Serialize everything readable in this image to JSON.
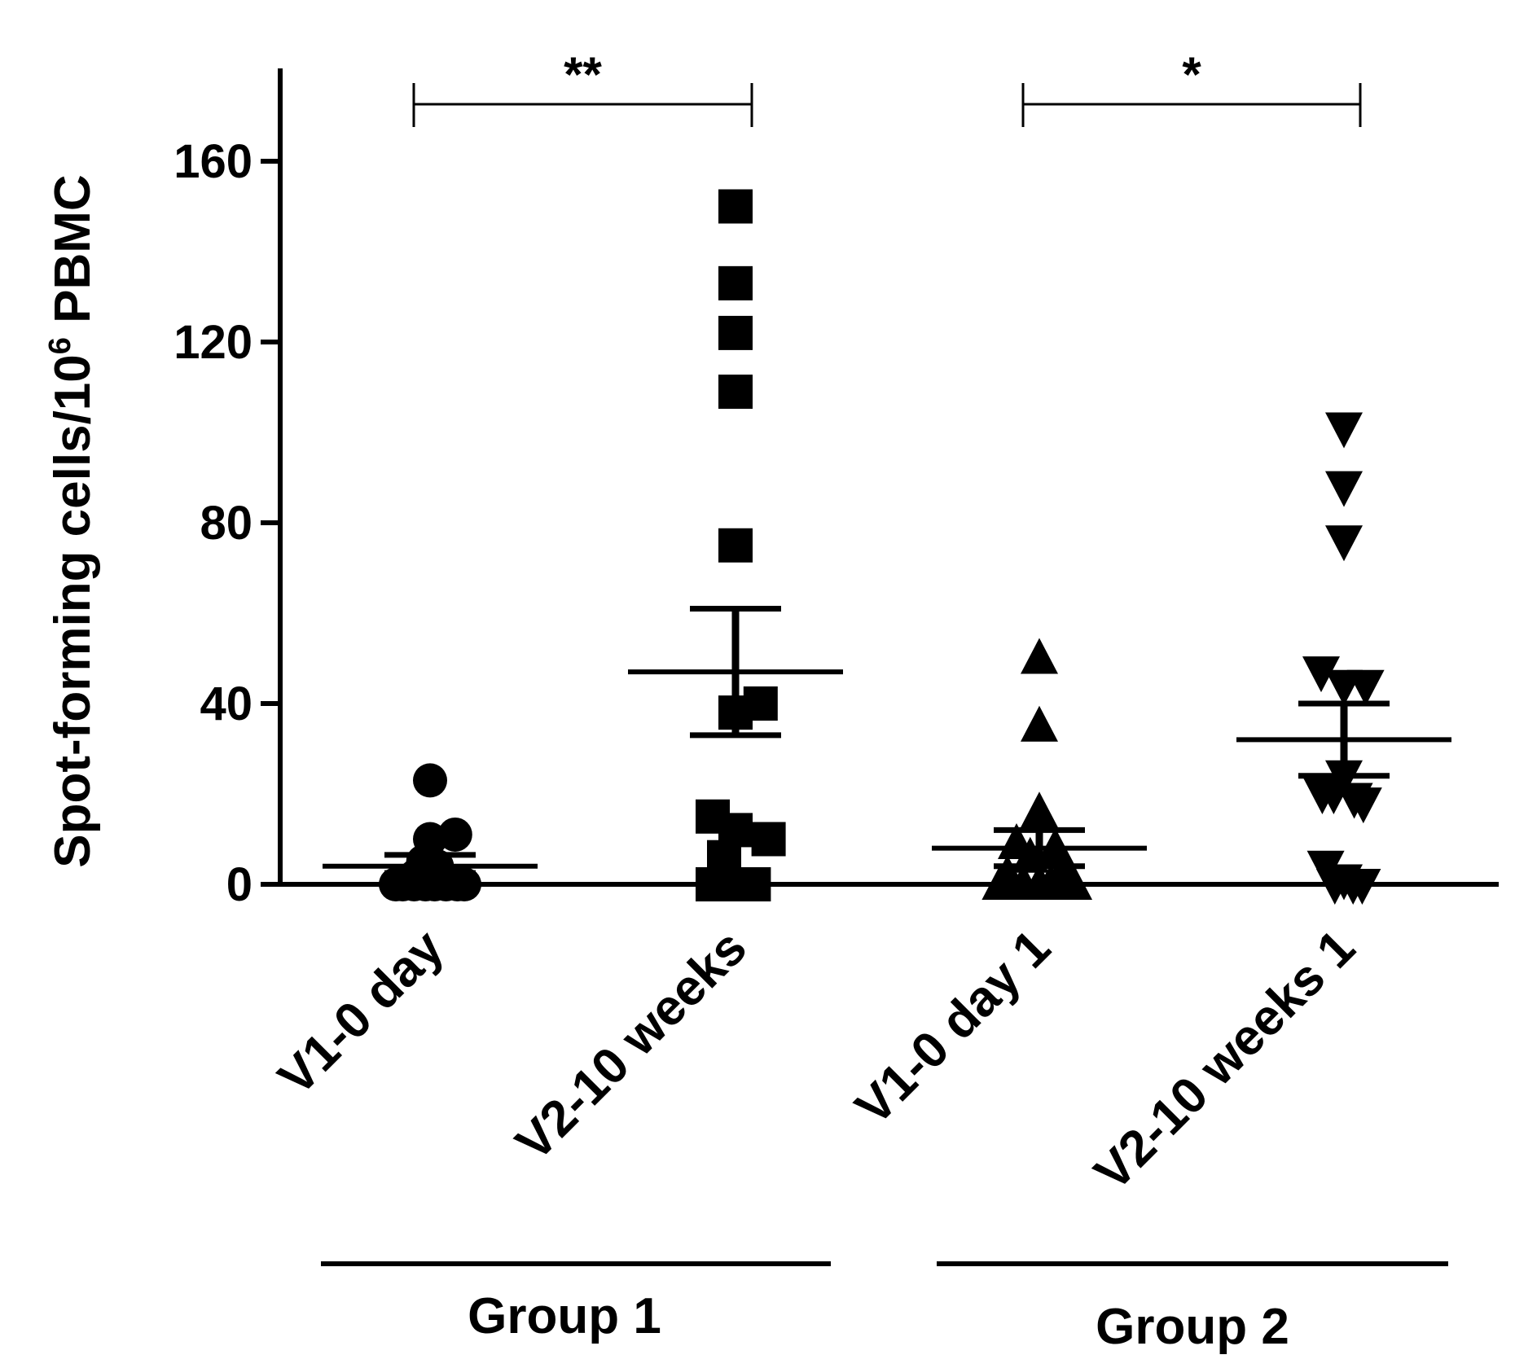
{
  "chart_data": {
    "type": "scatter",
    "title": "",
    "xlabel": "",
    "ylabel_parts": {
      "prefix": "Spot-forming cells/10",
      "superscript": "6",
      "suffix": " PBMC"
    },
    "ylim": [
      0,
      180
    ],
    "yticks": [
      0,
      40,
      80,
      120,
      160
    ],
    "categories": [
      "V1-0 day",
      "V2-10 weeks",
      "V1-0 day 1",
      "V2-10 weeks 1"
    ],
    "groups": [
      {
        "label": "Group 1",
        "categories": [
          0,
          1
        ]
      },
      {
        "label": "Group 2",
        "categories": [
          2,
          3
        ]
      }
    ],
    "series": [
      {
        "name": "V1-0 day",
        "marker": "circle",
        "values": [
          23,
          10,
          11,
          5,
          4,
          2,
          1,
          1,
          0,
          0,
          0,
          0,
          0,
          0,
          0,
          0
        ],
        "offsets": [
          0,
          0,
          2.2,
          -0.6,
          0.6,
          -1.2,
          1.2,
          -1.8,
          -3.0,
          -2.4,
          -1.4,
          -0.4,
          0.4,
          1.4,
          2.4,
          3.0
        ],
        "mean": 4,
        "sem_low": 2.5,
        "sem_high": 6.5
      },
      {
        "name": "V2-10 weeks",
        "marker": "square",
        "values": [
          150,
          133,
          122,
          109,
          75,
          40,
          38,
          15,
          12,
          10,
          6,
          0,
          0,
          0,
          0,
          0
        ],
        "offsets": [
          0,
          0,
          0,
          0,
          0,
          2.2,
          0,
          -2.0,
          0,
          2.9,
          -1.0,
          -2.0,
          0,
          0.8,
          1.6,
          -0.8
        ],
        "mean": 47,
        "sem_low": 33,
        "sem_high": 61
      },
      {
        "name": "V1-0 day 1",
        "marker": "triangle-up",
        "values": [
          50,
          35,
          16,
          9,
          8,
          6,
          3,
          2,
          1,
          0,
          0,
          0,
          0,
          0,
          0,
          0
        ],
        "offsets": [
          0,
          0,
          0,
          -2.0,
          1.4,
          -0.8,
          2.1,
          -2.8,
          2.6,
          -3.4,
          -2.4,
          -1.4,
          0,
          1.0,
          2.0,
          3.0
        ],
        "mean": 8,
        "sem_low": 4,
        "sem_high": 12
      },
      {
        "name": "V2-10 weeks 1",
        "marker": "triangle-down",
        "values": [
          101,
          88,
          76,
          47,
          44,
          44,
          24,
          20,
          20,
          19,
          18,
          4,
          1,
          0,
          0,
          0
        ],
        "offsets": [
          0,
          0,
          0,
          -2.0,
          0,
          1.9,
          0,
          -1.9,
          -0.9,
          0.9,
          1.7,
          -1.6,
          0,
          -0.8,
          0.8,
          1.6
        ],
        "mean": 32,
        "sem_low": 24,
        "sem_high": 40
      }
    ],
    "significance": [
      {
        "from": 0,
        "to": 1,
        "label": "**"
      },
      {
        "from": 2,
        "to": 3,
        "label": "*"
      }
    ]
  }
}
